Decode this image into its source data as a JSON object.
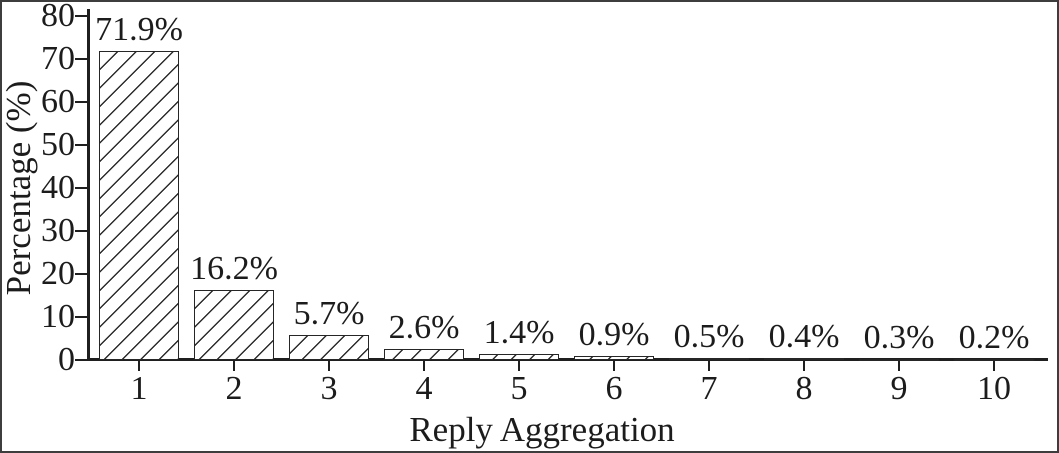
{
  "figure": {
    "background": "#ffffff",
    "border_color": "#3d3d3d",
    "text_color": "#1c1c1c"
  },
  "chart_data": {
    "type": "bar",
    "title": "",
    "xlabel": "Reply Aggregation",
    "ylabel": "Percentage (%)",
    "categories": [
      "1",
      "2",
      "3",
      "4",
      "5",
      "6",
      "7",
      "8",
      "9",
      "10"
    ],
    "values": [
      71.9,
      16.2,
      5.7,
      2.6,
      1.4,
      0.9,
      0.5,
      0.4,
      0.3,
      0.2
    ],
    "bar_labels": [
      "71.9%",
      "16.2%",
      "5.7%",
      "2.6%",
      "1.4%",
      "0.9%",
      "0.5%",
      "0.4%",
      "0.3%",
      "0.2%"
    ],
    "ylim": [
      0,
      80
    ],
    "yticks": [
      0,
      10,
      20,
      30,
      40,
      50,
      60,
      70,
      80
    ],
    "grid": false,
    "legend": null,
    "bar_style": {
      "fill": "#ffffff",
      "hatch": "diagonal-forward",
      "edge_color": "#262626"
    }
  }
}
